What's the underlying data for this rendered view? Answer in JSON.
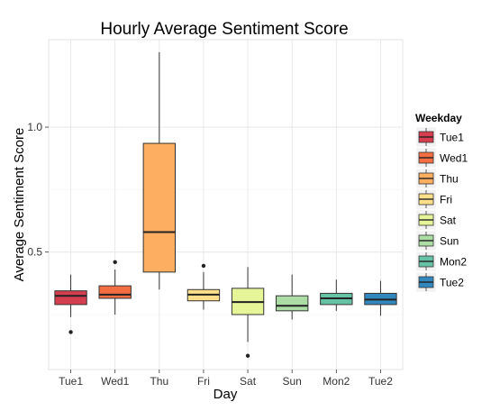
{
  "chart_data": {
    "type": "boxplot",
    "title": "Hourly Average Sentiment Score",
    "xlabel": "Day",
    "ylabel": "Average Sentiment Score",
    "ylim": [
      0.03,
      1.35
    ],
    "yticks": [
      0.5,
      1.0
    ],
    "ytick_labels": [
      "0.5",
      "1.0"
    ],
    "grid": true,
    "legend": {
      "title": "Weekday",
      "position": "right"
    },
    "categories": [
      "Tue1",
      "Wed1",
      "Thu",
      "Fri",
      "Sat",
      "Sun",
      "Mon2",
      "Tue2"
    ],
    "boxes": [
      {
        "name": "Tue1",
        "color": "#D53E4F",
        "whisker_low": 0.24,
        "q1": 0.29,
        "median": 0.325,
        "q3": 0.345,
        "whisker_high": 0.41,
        "outliers": [
          0.18
        ]
      },
      {
        "name": "Wed1",
        "color": "#F46D43",
        "whisker_low": 0.25,
        "q1": 0.315,
        "median": 0.33,
        "q3": 0.365,
        "whisker_high": 0.43,
        "outliers": [
          0.46
        ]
      },
      {
        "name": "Thu",
        "color": "#FDAE61",
        "whisker_low": 0.35,
        "q1": 0.42,
        "median": 0.58,
        "q3": 0.935,
        "whisker_high": 1.3,
        "outliers": []
      },
      {
        "name": "Fri",
        "color": "#FEE08B",
        "whisker_low": 0.27,
        "q1": 0.305,
        "median": 0.33,
        "q3": 0.35,
        "whisker_high": 0.42,
        "outliers": [
          0.445
        ]
      },
      {
        "name": "Sat",
        "color": "#E6F598",
        "whisker_low": 0.14,
        "q1": 0.25,
        "median": 0.3,
        "q3": 0.355,
        "whisker_high": 0.44,
        "outliers": [
          0.085
        ]
      },
      {
        "name": "Sun",
        "color": "#ABDDA4",
        "whisker_low": 0.23,
        "q1": 0.265,
        "median": 0.285,
        "q3": 0.325,
        "whisker_high": 0.41,
        "outliers": []
      },
      {
        "name": "Mon2",
        "color": "#66C2A5",
        "whisker_low": 0.265,
        "q1": 0.29,
        "median": 0.315,
        "q3": 0.335,
        "whisker_high": 0.39,
        "outliers": []
      },
      {
        "name": "Tue2",
        "color": "#3288BD",
        "whisker_low": 0.245,
        "q1": 0.29,
        "median": 0.31,
        "q3": 0.335,
        "whisker_high": 0.385,
        "outliers": []
      }
    ]
  }
}
